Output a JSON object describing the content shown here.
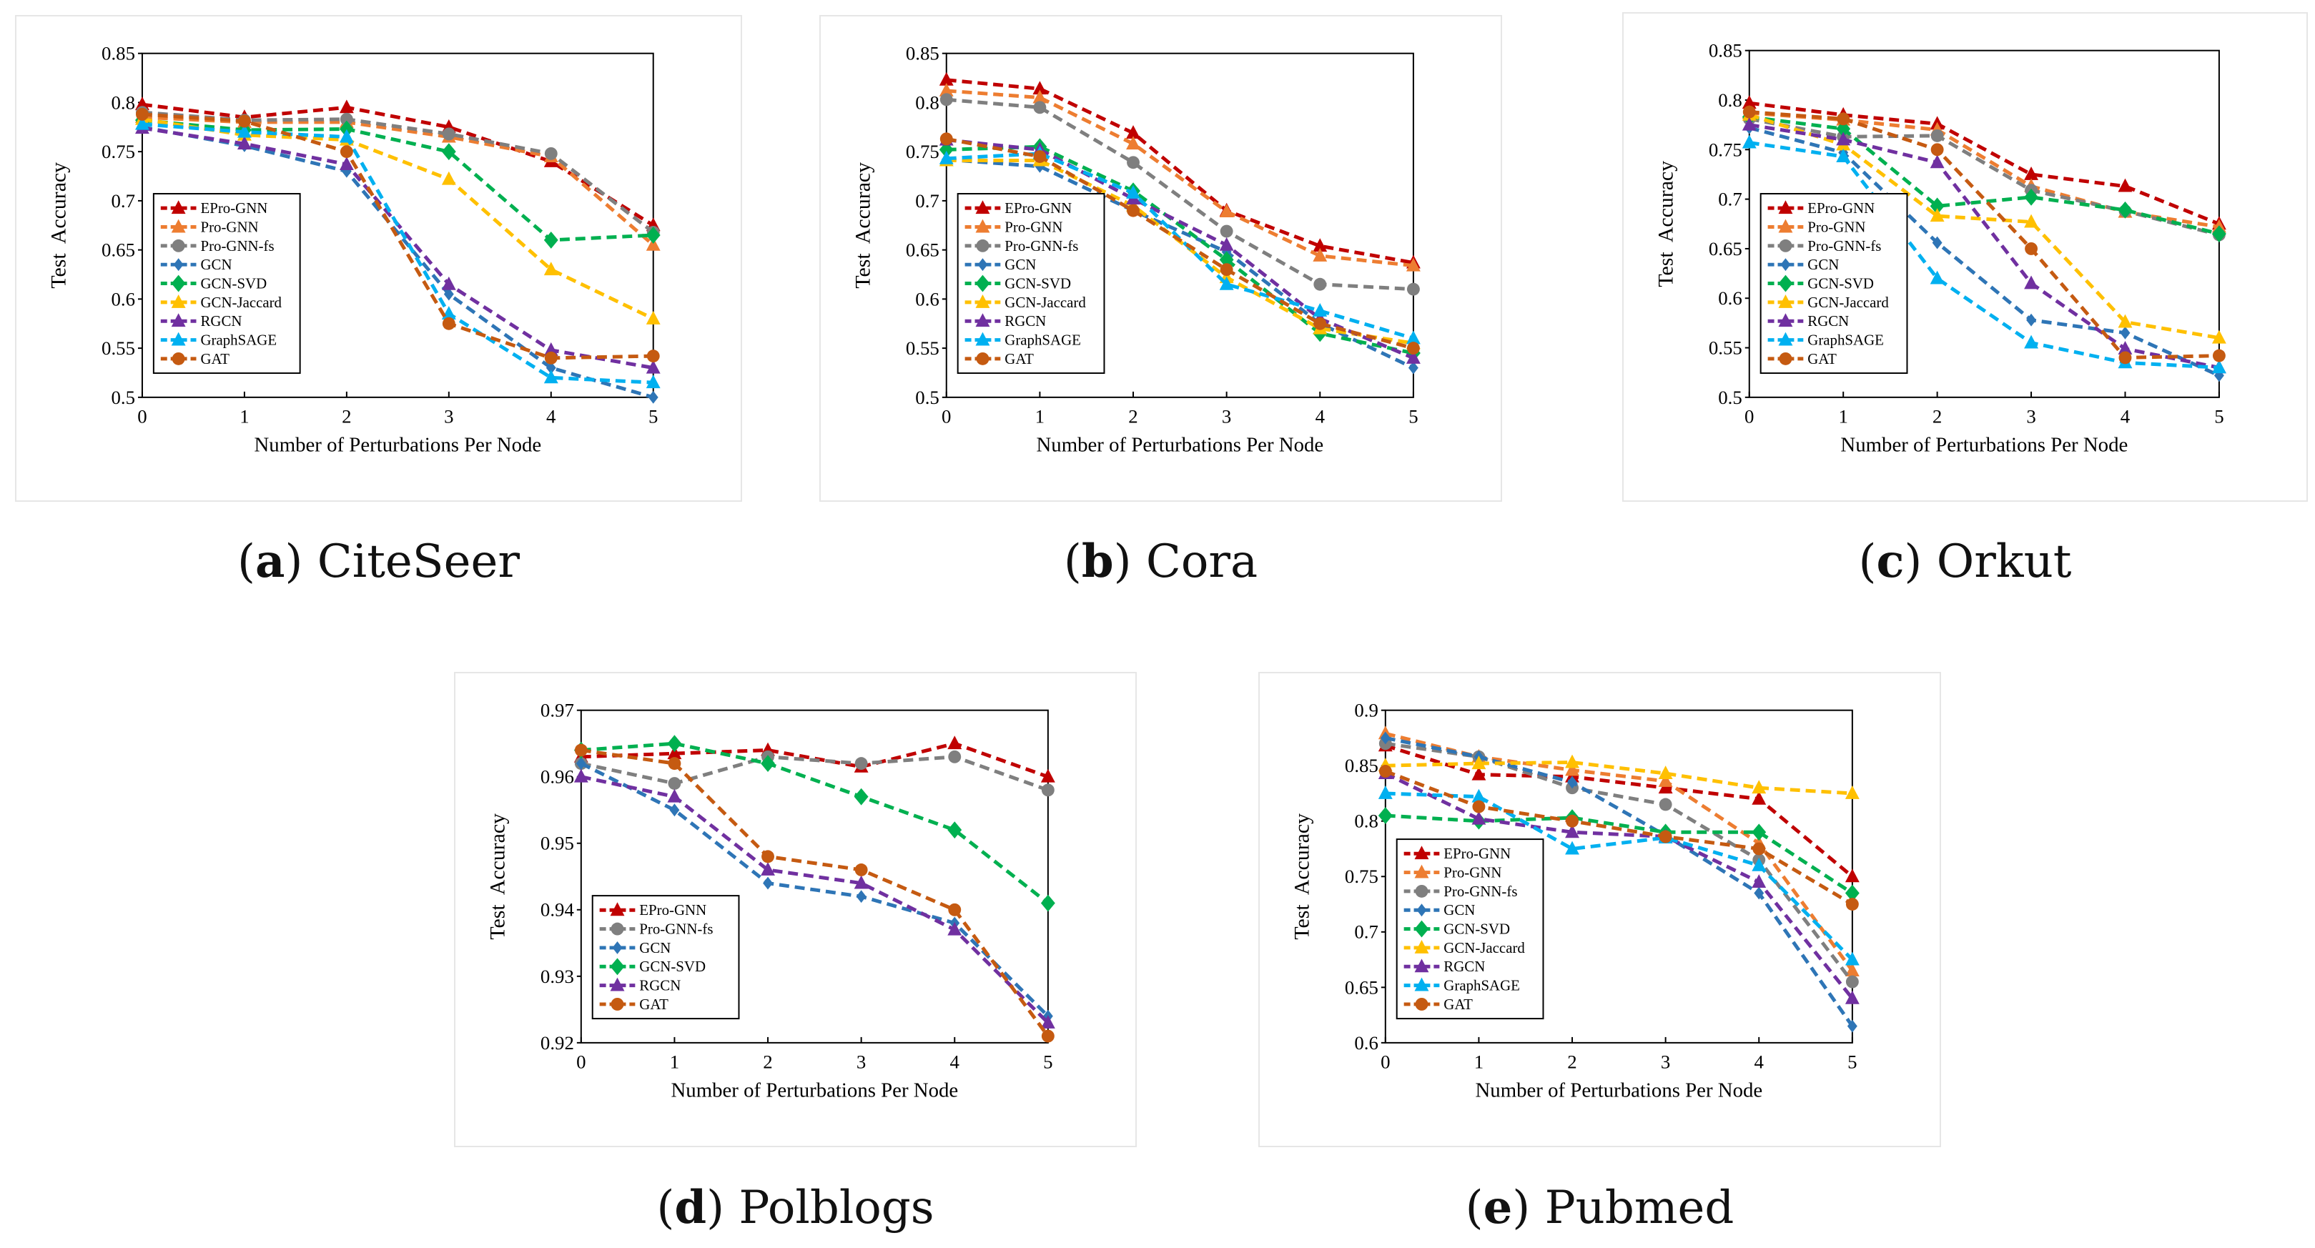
{
  "colors": {
    "EPro-GNN": "#C00000",
    "Pro-GNN": "#ED7D31",
    "Pro-GNN-fs": "#7F7F7F",
    "GCN": "#2E75B6",
    "GCN-SVD": "#00B050",
    "GCN-Jaccard": "#FFC000",
    "RGCN": "#7030A0",
    "GraphSAGE": "#00B0F0",
    "GAT": "#C55A11"
  },
  "markers": {
    "EPro-GNN": "triangle",
    "Pro-GNN": "triangle",
    "Pro-GNN-fs": "circle",
    "GCN": "small-diamond",
    "GCN-SVD": "diamond",
    "GCN-Jaccard": "triangle",
    "RGCN": "triangle",
    "GraphSAGE": "triangle",
    "GAT": "circle"
  },
  "captions": [
    {
      "label": "a",
      "name": "CiteSeer"
    },
    {
      "label": "b",
      "name": "Cora"
    },
    {
      "label": "c",
      "name": "Orkut"
    },
    {
      "label": "d",
      "name": "Polblogs"
    },
    {
      "label": "e",
      "name": "Pubmed"
    }
  ],
  "chart_data": [
    {
      "type": "line",
      "title": "CiteSeer",
      "xlabel": "Number of Perturbations Per Node",
      "ylabel": "Test  Accuracy",
      "x": [
        0,
        1,
        2,
        3,
        4,
        5
      ],
      "xticks": [
        "0",
        "1",
        "2",
        "3",
        "4",
        "5"
      ],
      "ylim": [
        0.5,
        0.85
      ],
      "yticks": [
        "0.5",
        "0.55",
        "0.6",
        "0.65",
        "0.7",
        "0.75",
        "0.8",
        "0.85"
      ],
      "legend": "lower-left",
      "series": [
        {
          "name": "EPro-GNN",
          "values": [
            0.798,
            0.785,
            0.795,
            0.775,
            0.74,
            0.675
          ]
        },
        {
          "name": "Pro-GNN",
          "values": [
            0.785,
            0.78,
            0.78,
            0.765,
            0.745,
            0.655
          ]
        },
        {
          "name": "Pro-GNN-fs",
          "values": [
            0.79,
            0.782,
            0.783,
            0.768,
            0.748,
            0.668
          ]
        },
        {
          "name": "GCN",
          "values": [
            0.775,
            0.756,
            0.73,
            0.605,
            0.53,
            0.5
          ]
        },
        {
          "name": "GCN-SVD",
          "values": [
            0.782,
            0.772,
            0.773,
            0.75,
            0.66,
            0.665
          ]
        },
        {
          "name": "GCN-Jaccard",
          "values": [
            0.783,
            0.767,
            0.762,
            0.722,
            0.63,
            0.58
          ]
        },
        {
          "name": "RGCN",
          "values": [
            0.774,
            0.758,
            0.737,
            0.615,
            0.548,
            0.53
          ]
        },
        {
          "name": "GraphSAGE",
          "values": [
            0.778,
            0.77,
            0.765,
            0.585,
            0.52,
            0.515
          ]
        },
        {
          "name": "GAT",
          "values": [
            0.788,
            0.781,
            0.75,
            0.575,
            0.54,
            0.542
          ]
        }
      ]
    },
    {
      "type": "line",
      "title": "Cora",
      "xlabel": "Number of Perturbations Per Node",
      "ylabel": "Test  Accuracy",
      "x": [
        0,
        1,
        2,
        3,
        4,
        5
      ],
      "xticks": [
        "0",
        "1",
        "2",
        "3",
        "4",
        "5"
      ],
      "ylim": [
        0.5,
        0.85
      ],
      "yticks": [
        "0.5",
        "0.55",
        "0.6",
        "0.65",
        "0.7",
        "0.75",
        "0.8",
        "0.85"
      ],
      "legend": "lower-left",
      "series": [
        {
          "name": "EPro-GNN",
          "values": [
            0.823,
            0.814,
            0.769,
            0.69,
            0.654,
            0.637
          ]
        },
        {
          "name": "Pro-GNN",
          "values": [
            0.812,
            0.805,
            0.758,
            0.689,
            0.644,
            0.634
          ]
        },
        {
          "name": "Pro-GNN-fs",
          "values": [
            0.803,
            0.795,
            0.739,
            0.669,
            0.615,
            0.61
          ]
        },
        {
          "name": "GCN",
          "values": [
            0.742,
            0.735,
            0.69,
            0.648,
            0.575,
            0.53
          ]
        },
        {
          "name": "GCN-SVD",
          "values": [
            0.752,
            0.755,
            0.71,
            0.64,
            0.565,
            0.545
          ]
        },
        {
          "name": "GCN-Jaccard",
          "values": [
            0.741,
            0.741,
            0.695,
            0.622,
            0.57,
            0.555
          ]
        },
        {
          "name": "RGCN",
          "values": [
            0.762,
            0.752,
            0.702,
            0.655,
            0.58,
            0.54
          ]
        },
        {
          "name": "GraphSAGE",
          "values": [
            0.743,
            0.748,
            0.708,
            0.615,
            0.588,
            0.56
          ]
        },
        {
          "name": "GAT",
          "values": [
            0.763,
            0.745,
            0.69,
            0.63,
            0.575,
            0.55
          ]
        }
      ]
    },
    {
      "type": "line",
      "title": "Orkut",
      "xlabel": "Number of Perturbations Per Node",
      "ylabel": "Test  Accuracy",
      "x": [
        0,
        1,
        2,
        3,
        4,
        5
      ],
      "xticks": [
        "0",
        "1",
        "2",
        "3",
        "4",
        "5"
      ],
      "ylim": [
        0.5,
        0.85
      ],
      "yticks": [
        "0.5",
        "0.55",
        "0.6",
        "0.65",
        "0.7",
        "0.75",
        "0.8",
        "0.85"
      ],
      "legend": "lower-left",
      "series": [
        {
          "name": "EPro-GNN",
          "values": [
            0.797,
            0.785,
            0.776,
            0.725,
            0.713,
            0.675
          ]
        },
        {
          "name": "Pro-GNN",
          "values": [
            0.787,
            0.78,
            0.77,
            0.713,
            0.687,
            0.672
          ]
        },
        {
          "name": "Pro-GNN-fs",
          "values": [
            0.781,
            0.763,
            0.764,
            0.709,
            0.688,
            0.664
          ]
        },
        {
          "name": "GCN",
          "values": [
            0.772,
            0.747,
            0.656,
            0.578,
            0.565,
            0.522
          ]
        },
        {
          "name": "GCN-SVD",
          "values": [
            0.783,
            0.771,
            0.693,
            0.702,
            0.689,
            0.665
          ]
        },
        {
          "name": "GCN-Jaccard",
          "values": [
            0.785,
            0.755,
            0.683,
            0.677,
            0.576,
            0.56
          ]
        },
        {
          "name": "RGCN",
          "values": [
            0.775,
            0.76,
            0.737,
            0.615,
            0.549,
            0.53
          ]
        },
        {
          "name": "GraphSAGE",
          "values": [
            0.757,
            0.743,
            0.62,
            0.555,
            0.535,
            0.53
          ]
        },
        {
          "name": "GAT",
          "values": [
            0.788,
            0.781,
            0.75,
            0.65,
            0.54,
            0.542
          ]
        }
      ]
    },
    {
      "type": "line",
      "title": "Polblogs",
      "xlabel": "Number of Perturbations Per Node",
      "ylabel": "Test  Accuracy",
      "x": [
        0,
        1,
        2,
        3,
        4,
        5
      ],
      "xticks": [
        "0",
        "1",
        "2",
        "3",
        "4",
        "5"
      ],
      "ylim": [
        0.92,
        0.97
      ],
      "yticks": [
        "0.92",
        "0.93",
        "0.94",
        "0.95",
        "0.96",
        "0.97"
      ],
      "legend": "lower-left",
      "series": [
        {
          "name": "EPro-GNN",
          "values": [
            0.963,
            0.9635,
            0.964,
            0.9615,
            0.965,
            0.96
          ]
        },
        {
          "name": "Pro-GNN-fs",
          "values": [
            0.962,
            0.959,
            0.963,
            0.962,
            0.963,
            0.958
          ]
        },
        {
          "name": "GCN",
          "values": [
            0.962,
            0.955,
            0.944,
            0.942,
            0.938,
            0.924
          ]
        },
        {
          "name": "GCN-SVD",
          "values": [
            0.964,
            0.965,
            0.962,
            0.957,
            0.952,
            0.941
          ]
        },
        {
          "name": "RGCN",
          "values": [
            0.96,
            0.957,
            0.946,
            0.944,
            0.937,
            0.923
          ]
        },
        {
          "name": "GAT",
          "values": [
            0.964,
            0.962,
            0.948,
            0.946,
            0.94,
            0.921
          ]
        }
      ]
    },
    {
      "type": "line",
      "title": "Pubmed",
      "xlabel": "Number of Perturbations Per Node",
      "ylabel": "Test  Accuracy",
      "x": [
        0,
        1,
        2,
        3,
        4,
        5
      ],
      "xticks": [
        "0",
        "1",
        "2",
        "3",
        "4",
        "5"
      ],
      "ylim": [
        0.6,
        0.9
      ],
      "yticks": [
        "0.6",
        "0.65",
        "0.7",
        "0.75",
        "0.8",
        "0.85",
        "0.9"
      ],
      "legend": "lower-left",
      "series": [
        {
          "name": "EPro-GNN",
          "values": [
            0.868,
            0.842,
            0.84,
            0.83,
            0.82,
            0.75
          ]
        },
        {
          "name": "Pro-GNN",
          "values": [
            0.879,
            0.858,
            0.846,
            0.836,
            0.78,
            0.665
          ]
        },
        {
          "name": "Pro-GNN-fs",
          "values": [
            0.87,
            0.858,
            0.83,
            0.815,
            0.765,
            0.655
          ]
        },
        {
          "name": "GCN",
          "values": [
            0.875,
            0.858,
            0.835,
            0.787,
            0.735,
            0.615
          ]
        },
        {
          "name": "GCN-SVD",
          "values": [
            0.805,
            0.8,
            0.803,
            0.79,
            0.79,
            0.735
          ]
        },
        {
          "name": "GCN-Jaccard",
          "values": [
            0.85,
            0.852,
            0.853,
            0.843,
            0.83,
            0.825
          ]
        },
        {
          "name": "RGCN",
          "values": [
            0.843,
            0.802,
            0.79,
            0.786,
            0.745,
            0.64
          ]
        },
        {
          "name": "GraphSAGE",
          "values": [
            0.825,
            0.822,
            0.775,
            0.785,
            0.76,
            0.675
          ]
        },
        {
          "name": "GAT",
          "values": [
            0.845,
            0.813,
            0.8,
            0.786,
            0.775,
            0.725
          ]
        }
      ]
    }
  ]
}
